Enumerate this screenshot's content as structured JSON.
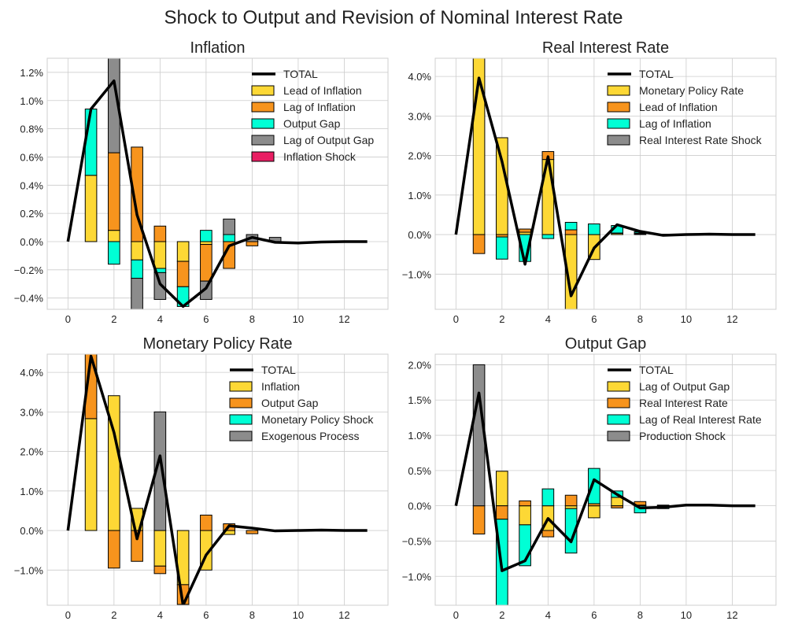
{
  "figure_title": "Shock to Output and Revision of Nominal Interest Rate",
  "colors": {
    "yellow": "#fdd835",
    "orange": "#f7941d",
    "cyan": "#00ffd5",
    "gray": "#8c8c8c",
    "pink": "#e91e63",
    "total": "#000000",
    "grid": "#cccccc"
  },
  "chart_data": [
    {
      "type": "bar",
      "title": "Inflation",
      "stacked": true,
      "x": [
        0,
        1,
        2,
        3,
        4,
        5,
        6,
        7,
        8,
        9,
        10,
        11,
        12,
        13
      ],
      "xticks": [
        0,
        2,
        4,
        6,
        8,
        10,
        12
      ],
      "xlim": [
        -0.9,
        13.9
      ],
      "ylim": [
        -0.0048,
        0.013
      ],
      "yticks": [
        -0.004,
        -0.002,
        0,
        0.002,
        0.004,
        0.006,
        0.008,
        0.01,
        0.012
      ],
      "ytick_labels": [
        "−0.4%",
        "−0.2%",
        "0.0%",
        "0.2%",
        "0.4%",
        "0.6%",
        "0.8%",
        "1.0%",
        "1.2%"
      ],
      "grid": true,
      "legend": "top-right",
      "total": {
        "name": "TOTAL",
        "values": [
          0,
          0.0094,
          0.0114,
          0.0019,
          -0.003,
          -0.0046,
          -0.0033,
          -0.0003,
          0.0003,
          -5e-05,
          -0.0001,
          -3e-05,
          0,
          0
        ]
      },
      "series": [
        {
          "name": "Lead of Inflation",
          "color": "yellow",
          "values": [
            0,
            0.0047,
            0.0008,
            -0.0013,
            -0.0019,
            -0.0014,
            -0.0002,
            0,
            0,
            0,
            0,
            0,
            0,
            0
          ]
        },
        {
          "name": "Lag of Inflation",
          "color": "orange",
          "values": [
            0,
            0,
            0.0055,
            0.0067,
            0.0011,
            -0.0018,
            -0.0026,
            -0.0019,
            -0.0003,
            0,
            0,
            0,
            0,
            0
          ]
        },
        {
          "name": "Output Gap",
          "color": "cyan",
          "values": [
            0,
            0.0047,
            -0.0016,
            -0.0013,
            -0.0003,
            -0.0014,
            0.0008,
            0.0005,
            0,
            0,
            0,
            0,
            0,
            0
          ]
        },
        {
          "name": "Lag of Output Gap",
          "color": "gray",
          "values": [
            0,
            0,
            0.0067,
            -0.0025,
            -0.0019,
            0,
            -0.0013,
            0.0011,
            0.0005,
            0.0003,
            0,
            0,
            0,
            0
          ]
        },
        {
          "name": "Inflation Shock",
          "color": "pink",
          "values": [
            0,
            0,
            0,
            0,
            0,
            0,
            0,
            0,
            0,
            0,
            0,
            0,
            0,
            0
          ]
        }
      ]
    },
    {
      "type": "bar",
      "title": "Real Interest Rate",
      "stacked": true,
      "x": [
        0,
        1,
        2,
        3,
        4,
        5,
        6,
        7,
        8,
        9,
        10,
        11,
        12,
        13
      ],
      "xticks": [
        0,
        2,
        4,
        6,
        8,
        10,
        12
      ],
      "xlim": [
        -0.9,
        13.9
      ],
      "ylim": [
        -0.0189,
        0.0446
      ],
      "yticks": [
        -0.01,
        0,
        0.01,
        0.02,
        0.03,
        0.04
      ],
      "ytick_labels": [
        "−1.0%",
        "0.0%",
        "1.0%",
        "2.0%",
        "3.0%",
        "4.0%"
      ],
      "grid": true,
      "legend": "top-right",
      "total": {
        "name": "TOTAL",
        "values": [
          0,
          0.0396,
          0.0185,
          -0.0075,
          0.0197,
          -0.0155,
          -0.0034,
          0.0025,
          0.0008,
          -0.0002,
          0,
          0.0001,
          0,
          0
        ]
      },
      "series": [
        {
          "name": "Monetary Policy Rate",
          "color": "yellow",
          "values": [
            0,
            0.0446,
            0.0245,
            0.0006,
            0.019,
            -0.019,
            -0.0063,
            0.0003,
            0.0002,
            0,
            0,
            0,
            0,
            0
          ]
        },
        {
          "name": "Lead of Inflation",
          "color": "orange",
          "values": [
            0,
            -0.0048,
            -0.0006,
            0.0008,
            0.002,
            0.0012,
            0,
            0.0001,
            0.0002,
            0.0001,
            0,
            0,
            0,
            0
          ]
        },
        {
          "name": "Lag of Inflation",
          "color": "cyan",
          "values": [
            0,
            0,
            -0.0056,
            -0.0068,
            -0.001,
            0.0019,
            0.0027,
            0.0019,
            0.0003,
            0,
            0,
            0,
            0,
            0
          ]
        },
        {
          "name": "Real Interest Rate Shock",
          "color": "gray",
          "values": [
            0,
            0,
            0,
            0,
            0,
            0,
            0,
            0,
            0,
            0,
            0,
            0,
            0,
            0
          ]
        }
      ]
    },
    {
      "type": "bar",
      "title": "Monetary Policy Rate",
      "stacked": true,
      "x": [
        0,
        1,
        2,
        3,
        4,
        5,
        6,
        7,
        8,
        9,
        10,
        11,
        12,
        13
      ],
      "xticks": [
        0,
        2,
        4,
        6,
        8,
        10,
        12
      ],
      "xlim": [
        -0.9,
        13.9
      ],
      "ylim": [
        -0.0189,
        0.0446
      ],
      "yticks": [
        -0.01,
        0,
        0.01,
        0.02,
        0.03,
        0.04
      ],
      "ytick_labels": [
        "−1.0%",
        "0.0%",
        "1.0%",
        "2.0%",
        "3.0%",
        "4.0%"
      ],
      "grid": true,
      "legend": "top-right",
      "total": {
        "name": "TOTAL",
        "values": [
          0,
          0.0441,
          0.0248,
          -0.0021,
          0.0189,
          -0.0189,
          -0.0062,
          0.0012,
          0.0006,
          -0.0001,
          0,
          0.0001,
          0,
          0
        ]
      },
      "series": [
        {
          "name": "Inflation",
          "color": "yellow",
          "values": [
            0,
            0.0283,
            0.0341,
            0.0056,
            -0.009,
            -0.0137,
            -0.01,
            -0.001,
            0,
            0,
            0,
            0,
            0,
            0
          ]
        },
        {
          "name": "Output Gap",
          "color": "orange",
          "values": [
            0,
            0.0163,
            -0.0095,
            -0.0078,
            -0.0019,
            -0.005,
            0.0039,
            0.0017,
            -0.0008,
            0,
            0,
            0,
            0,
            0
          ]
        },
        {
          "name": "Monetary Policy Shock",
          "color": "cyan",
          "values": [
            0,
            0,
            0,
            0,
            0,
            0,
            0,
            0,
            0,
            0,
            0,
            0,
            0,
            0
          ]
        },
        {
          "name": "Exogenous Process",
          "color": "gray",
          "values": [
            0,
            0,
            0,
            0,
            0.03,
            0,
            0,
            0,
            0,
            0,
            0,
            0,
            0,
            0
          ]
        }
      ]
    },
    {
      "type": "bar",
      "title": "Output Gap",
      "stacked": true,
      "x": [
        0,
        1,
        2,
        3,
        4,
        5,
        6,
        7,
        8,
        9,
        10,
        11,
        12,
        13
      ],
      "xticks": [
        0,
        2,
        4,
        6,
        8,
        10,
        12
      ],
      "xlim": [
        -0.9,
        13.9
      ],
      "ylim": [
        -0.0141,
        0.0215
      ],
      "yticks": [
        -0.01,
        -0.005,
        0,
        0.005,
        0.01,
        0.015,
        0.02
      ],
      "ytick_labels": [
        "−1.0%",
        "−0.5%",
        "0.0%",
        "0.5%",
        "1.0%",
        "1.5%",
        "2.0%"
      ],
      "grid": true,
      "legend": "top-right",
      "total": {
        "name": "TOTAL",
        "values": [
          0,
          0.016,
          -0.0092,
          -0.0078,
          -0.0018,
          -0.0051,
          0.0037,
          0.0016,
          -0.0003,
          -0.0002,
          0.0001,
          0.0001,
          0,
          0
        ]
      },
      "series": [
        {
          "name": "Lag of Output Gap",
          "color": "yellow",
          "values": [
            0,
            0,
            0.0049,
            -0.0027,
            -0.0035,
            -0.0004,
            -0.0017,
            0.0012,
            0.0001,
            -0.0001,
            0,
            0,
            0,
            0
          ]
        },
        {
          "name": "Real Interest Rate",
          "color": "orange",
          "values": [
            0,
            -0.004,
            -0.0019,
            0.0007,
            -0.0009,
            0.0015,
            0.0003,
            -0.0003,
            0.0005,
            0.0001,
            0,
            0,
            0,
            0
          ]
        },
        {
          "name": "Lag of Real Interest Rate",
          "color": "cyan",
          "values": [
            0,
            0,
            -0.0141,
            -0.0058,
            0.0024,
            -0.0063,
            0.005,
            0.0009,
            -0.001,
            -0.0003,
            0,
            0,
            0,
            0
          ]
        },
        {
          "name": "Production Shock",
          "color": "gray",
          "values": [
            0,
            0.02,
            0,
            0,
            0,
            0,
            0,
            0,
            0,
            0,
            0,
            0,
            0,
            0
          ]
        }
      ]
    }
  ]
}
